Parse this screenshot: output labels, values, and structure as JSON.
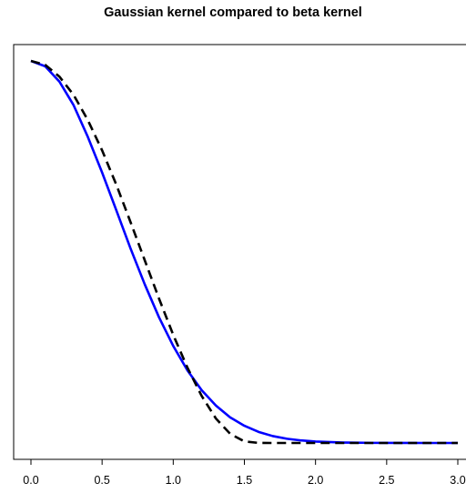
{
  "chart_data": {
    "type": "line",
    "title": "Gaussian kernel compared to beta kernel",
    "xlabel": "",
    "ylabel": "",
    "xlim": [
      -0.15,
      3.0
    ],
    "ylim": [
      0,
      1
    ],
    "x_ticks": [
      "0.0",
      "0.5",
      "1.0",
      "1.5",
      "2.0",
      "2.5",
      "3.0"
    ],
    "grid": false,
    "legend": "none",
    "series": [
      {
        "color": "#0000ff",
        "line_style": "solid",
        "x": [
          0.0,
          0.1,
          0.2,
          0.3,
          0.4,
          0.5,
          0.6,
          0.7,
          0.8,
          0.9,
          1.0,
          1.1,
          1.2,
          1.3,
          1.4,
          1.5,
          1.6,
          1.7,
          1.8,
          1.9,
          2.0,
          2.2,
          2.4,
          2.6,
          2.8,
          3.0
        ],
        "y": [
          1.0,
          0.986,
          0.946,
          0.884,
          0.801,
          0.708,
          0.609,
          0.509,
          0.415,
          0.329,
          0.254,
          0.19,
          0.138,
          0.098,
          0.067,
          0.045,
          0.029,
          0.018,
          0.011,
          0.0066,
          0.0038,
          0.0011,
          0.0003,
          0.0001,
          0.0,
          0.0
        ]
      },
      {
        "color": "#000000",
        "line_style": "dashed",
        "x": [
          0.0,
          0.1,
          0.2,
          0.3,
          0.4,
          0.5,
          0.6,
          0.7,
          0.8,
          0.9,
          1.0,
          1.1,
          1.2,
          1.3,
          1.4,
          1.5,
          1.6,
          1.7,
          1.75,
          2.0,
          2.5,
          3.0
        ],
        "y": [
          1.0,
          0.99,
          0.959,
          0.911,
          0.845,
          0.766,
          0.676,
          0.578,
          0.478,
          0.378,
          0.283,
          0.197,
          0.123,
          0.064,
          0.024,
          0.004,
          0.0002,
          0.0,
          0.0,
          0.0,
          0.0,
          0.0
        ]
      }
    ]
  }
}
